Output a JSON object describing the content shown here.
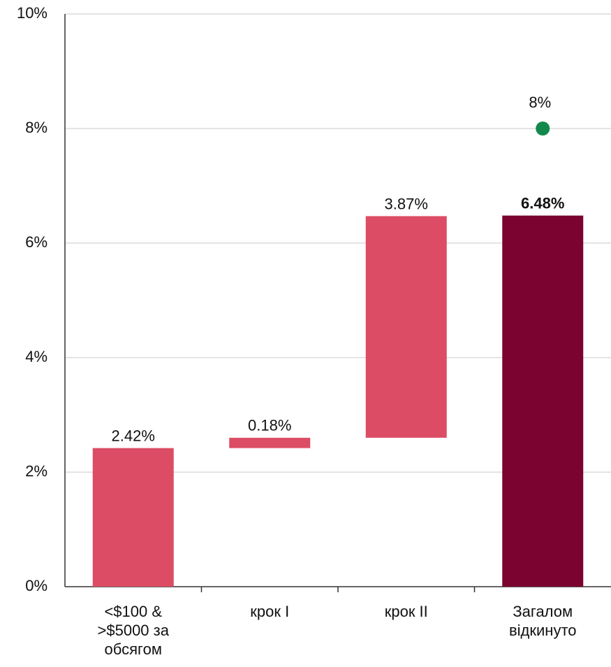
{
  "chart_data": {
    "type": "waterfall",
    "categories": [
      "<$100 & >$5000 за обсягом",
      "крок I",
      "крок II",
      "Загалом відкинуто"
    ],
    "values": [
      2.42,
      0.18,
      3.87,
      6.48
    ],
    "value_labels": [
      "2.42%",
      "0.18%",
      "3.87%",
      "6.48%"
    ],
    "totals": [
      false,
      false,
      false,
      true
    ],
    "color": "#dc4c64",
    "total_color": "#7a0330",
    "target_values": [
      null,
      null,
      null,
      8
    ],
    "target_labels": [
      null,
      null,
      null,
      "8%"
    ],
    "target_color": "#138a4b",
    "ylim": [
      0,
      10
    ],
    "yticks": [
      {
        "value": 0,
        "label": "0%"
      },
      {
        "value": 2,
        "label": "2%"
      },
      {
        "value": 4,
        "label": "4%"
      },
      {
        "value": 6,
        "label": "6%"
      },
      {
        "value": 8,
        "label": "8%"
      },
      {
        "value": 10,
        "label": "10%"
      }
    ],
    "grid": true
  }
}
